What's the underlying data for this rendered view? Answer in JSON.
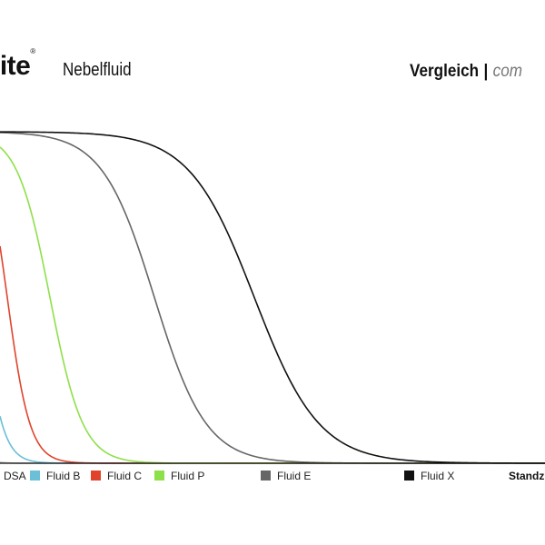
{
  "header": {
    "logo_text": "lite",
    "logo_mark": "®",
    "product": "Nebelfluid",
    "compare_title": "Vergleich",
    "separator": "|",
    "compare_sub": "com"
  },
  "chart_data": {
    "type": "line",
    "x_label": "Standz",
    "y_label": "",
    "xlim": [
      0,
      600
    ],
    "ylim": [
      0,
      1
    ],
    "grid": false,
    "legend_position": "bottom",
    "series": [
      {
        "name": "DSA",
        "color": "#a9a9a9",
        "t50": -50,
        "k": 0.12
      },
      {
        "name": "Fluid B",
        "color": "#6bbfd6",
        "t50": -20,
        "k": 0.09
      },
      {
        "name": "Fluid C",
        "color": "#e0432c",
        "t50": 8,
        "k": 0.08
      },
      {
        "name": "Fluid P",
        "color": "#8ee04a",
        "t50": 55,
        "k": 0.055
      },
      {
        "name": "Fluid E",
        "color": "#666666",
        "t50": 170,
        "k": 0.035
      },
      {
        "name": "Fluid X",
        "color": "#111111",
        "t50": 280,
        "k": 0.028
      }
    ]
  },
  "legend": [
    {
      "label": "DSA",
      "color": "#a9a9a9",
      "show_swatch": false
    },
    {
      "label": "Fluid B",
      "color": "#6bbfd6",
      "show_swatch": true
    },
    {
      "label": "Fluid C",
      "color": "#e0432c",
      "show_swatch": true
    },
    {
      "label": "Fluid P",
      "color": "#8ee04a",
      "show_swatch": true
    },
    {
      "label": "Fluid E",
      "color": "#666666",
      "show_swatch": true
    },
    {
      "label": "Fluid X",
      "color": "#111111",
      "show_swatch": true
    }
  ]
}
